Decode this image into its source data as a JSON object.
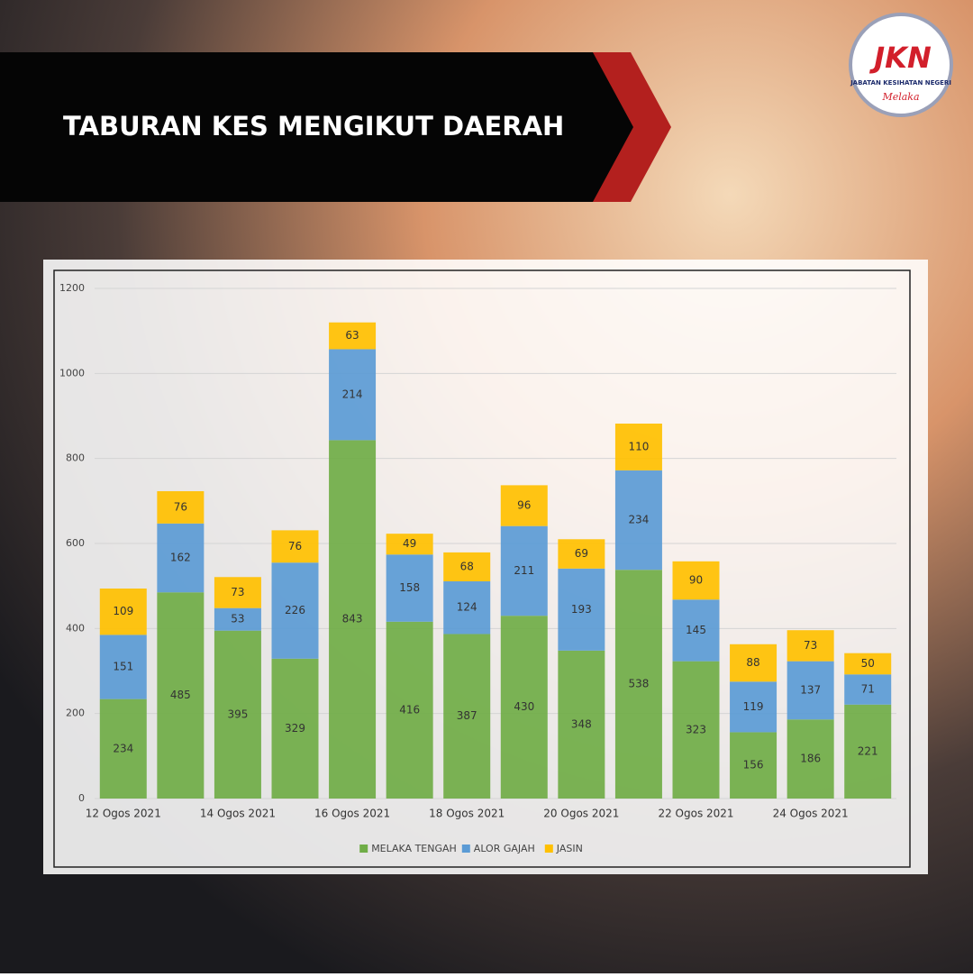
{
  "chart_data": {
    "type": "stacked_bar",
    "title": "TABURAN KES MENGIKUT DAERAH",
    "categories": [
      "12 Ogos 2021",
      null,
      "14 Ogos 2021",
      null,
      "16 Ogos 2021",
      null,
      "18 Ogos 2021",
      null,
      "20 Ogos 2021",
      null,
      "22 Ogos 2021",
      null,
      "24 Ogos 2021",
      null
    ],
    "series": [
      {
        "name": "MELAKA TENGAH",
        "color": "#70ad47",
        "values": [
          234,
          485,
          395,
          329,
          843,
          416,
          387,
          430,
          348,
          538,
          323,
          156,
          186,
          221
        ]
      },
      {
        "name": "ALOR GAJAH",
        "color": "#5b9bd5",
        "values": [
          151,
          162,
          53,
          226,
          214,
          158,
          124,
          211,
          193,
          234,
          145,
          119,
          137,
          71
        ]
      },
      {
        "name": "JASIN",
        "color": "#ffc000",
        "values": [
          109,
          76,
          73,
          76,
          63,
          49,
          68,
          96,
          69,
          110,
          90,
          88,
          73,
          50
        ]
      }
    ],
    "ylim": [
      0,
      1200
    ],
    "yticks": [
      0,
      200,
      400,
      600,
      800,
      1000,
      1200
    ],
    "grid": true,
    "legend": "bottom"
  },
  "logo": {
    "mark": "JKN",
    "name": "JABATAN KESIHATAN NEGERI",
    "state": "Melaka"
  }
}
